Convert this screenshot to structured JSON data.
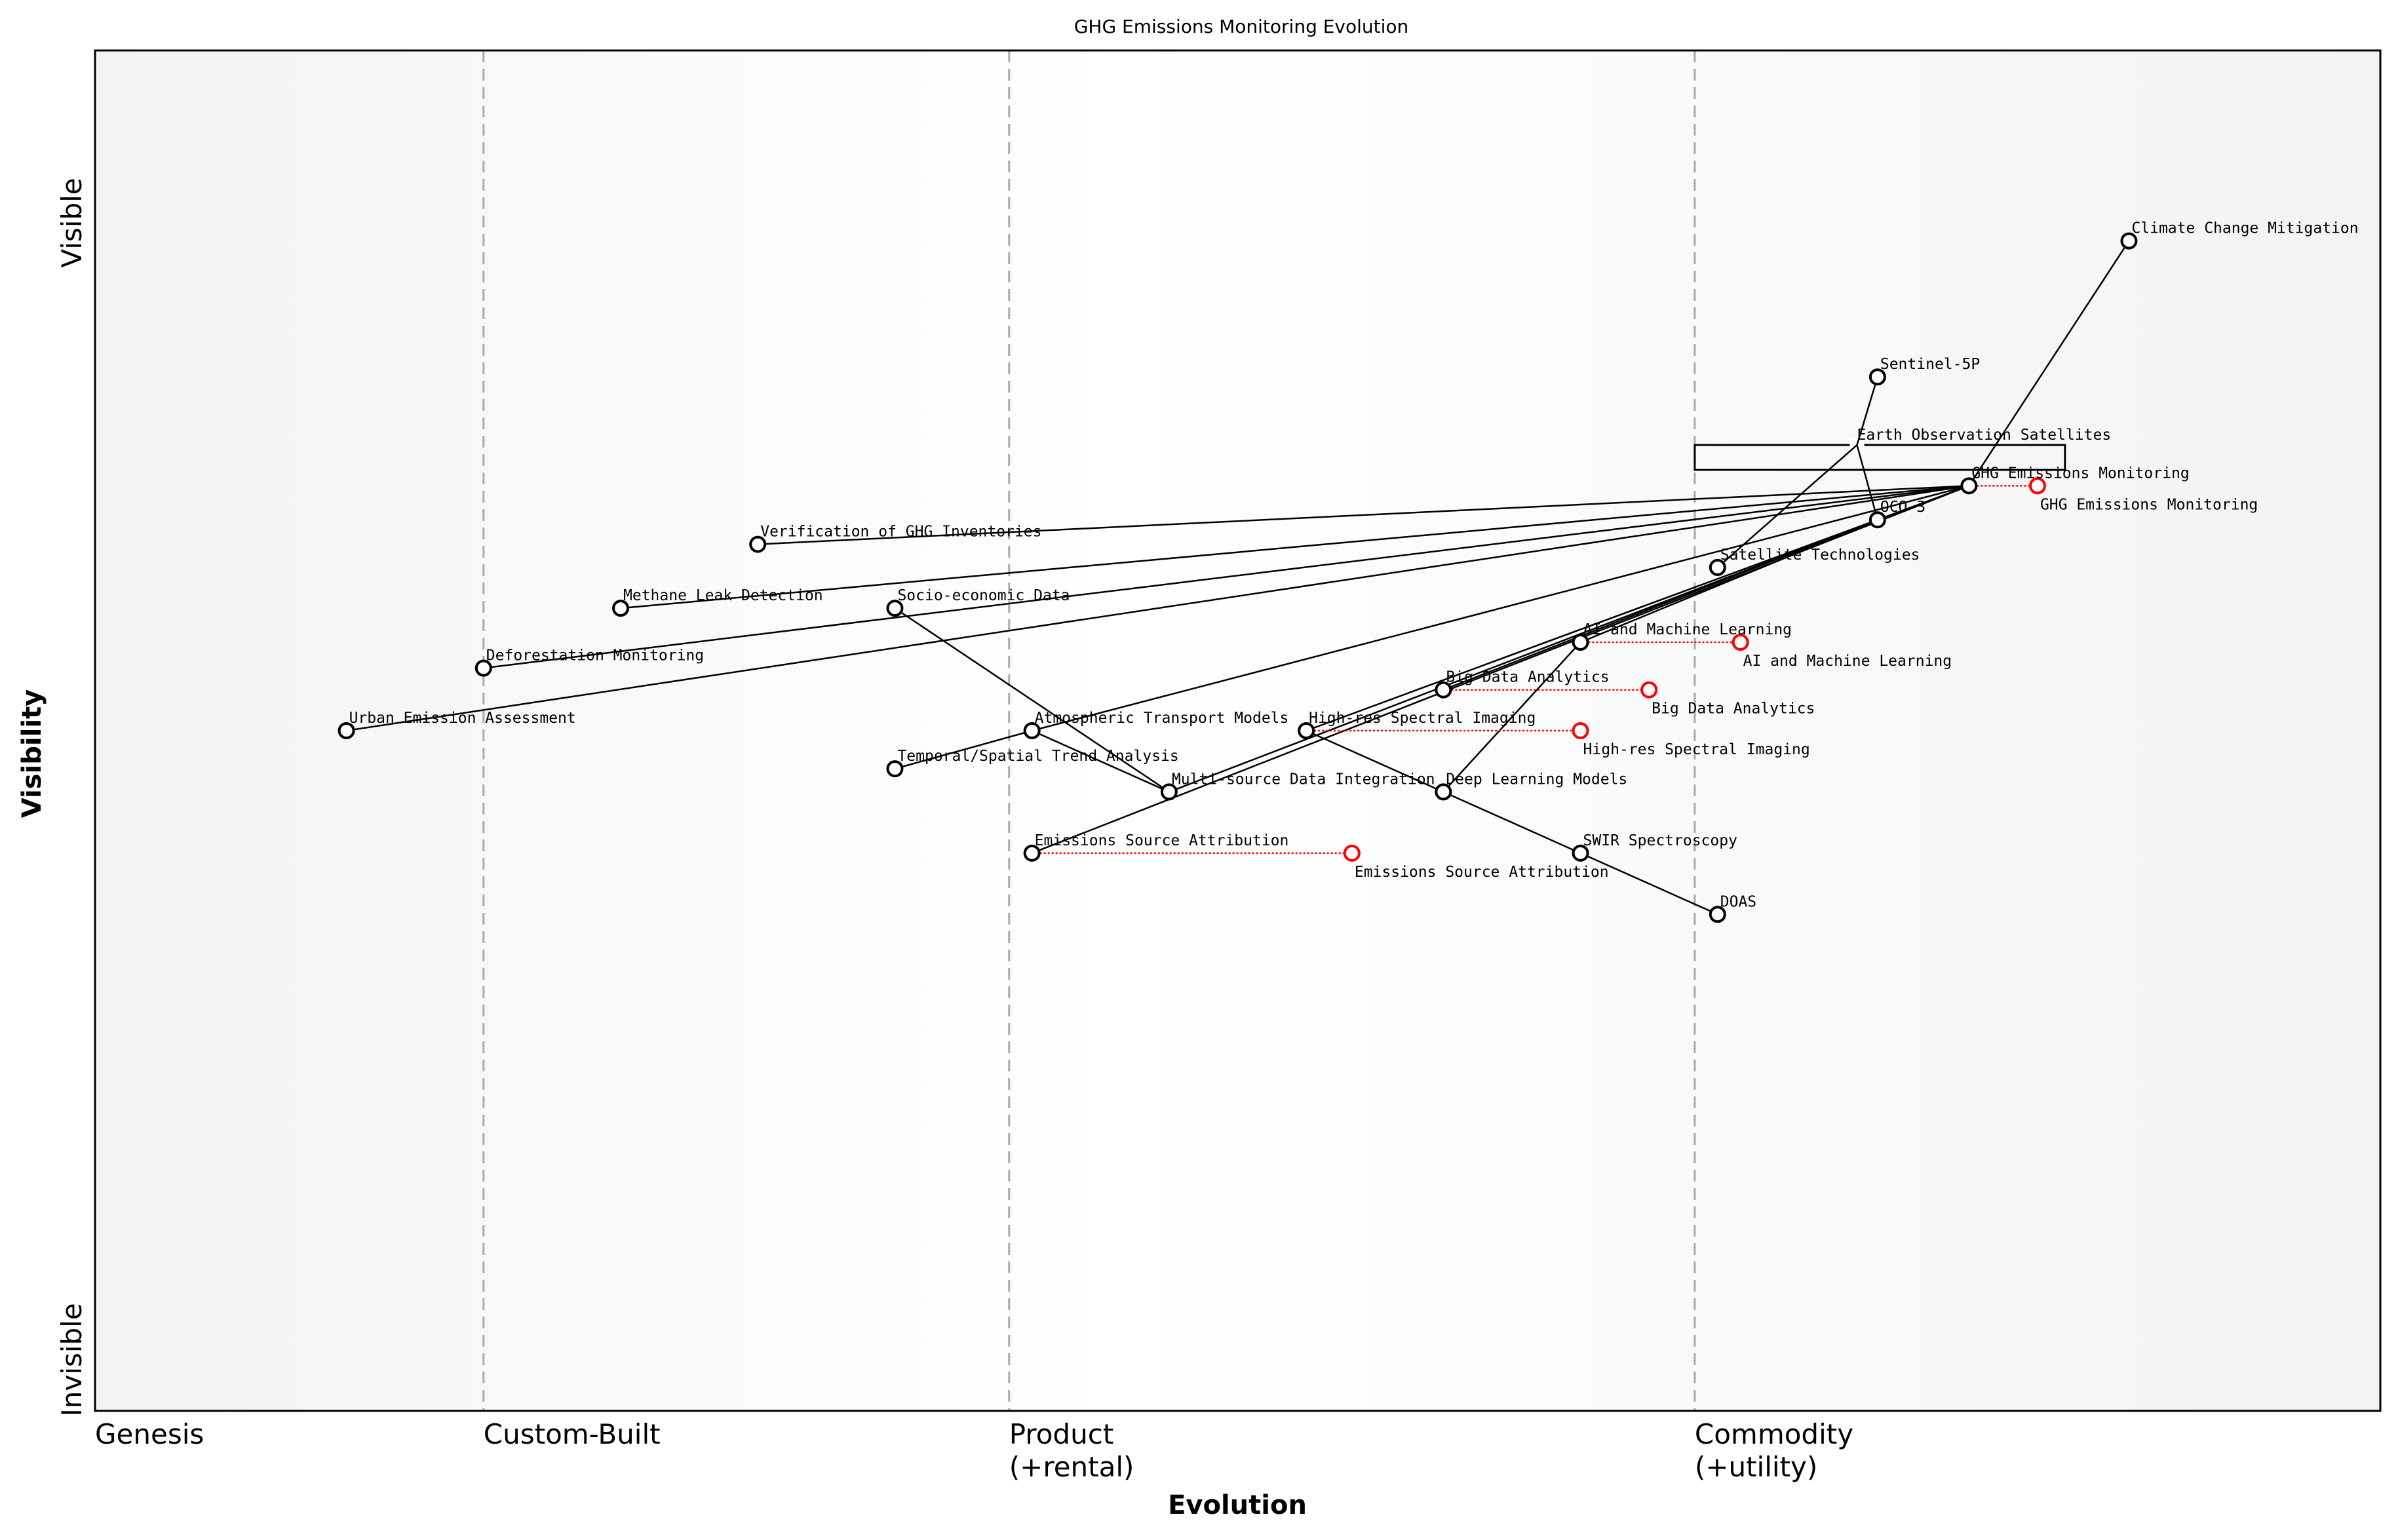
{
  "title": "GHG Emissions Monitoring Evolution",
  "x_axis": {
    "label": "Evolution",
    "stages": [
      {
        "label": "Genesis",
        "at": 0
      },
      {
        "label": "Custom-Built",
        "at": 0.17
      },
      {
        "label": "Product",
        "sub": "(+rental)",
        "at": 0.4
      },
      {
        "label": "Commodity",
        "sub": "(+utility)",
        "at": 0.7
      }
    ]
  },
  "y_axis": {
    "label": "Visibility",
    "top": "Visible",
    "bottom": "Invisible"
  },
  "colors": {
    "node": "#000000",
    "evolve": "#ff0000",
    "stage_line": "#aaaaaa"
  },
  "components": [
    {
      "name": "Climate Change Mitigation",
      "evolution": 0.89,
      "visibility": 0.86
    },
    {
      "name": "Sentinel-5P",
      "evolution": 0.78,
      "visibility": 0.76
    },
    {
      "name": "GHG Emissions Monitoring",
      "evolution": 0.82,
      "visibility": 0.68
    },
    {
      "name": "OCO-3",
      "evolution": 0.78,
      "visibility": 0.655
    },
    {
      "name": "Satellite Technologies",
      "evolution": 0.71,
      "visibility": 0.62
    },
    {
      "name": "AI and Machine Learning",
      "evolution": 0.65,
      "visibility": 0.565
    },
    {
      "name": "Big Data Analytics",
      "evolution": 0.59,
      "visibility": 0.53
    },
    {
      "name": "High-res Spectral Imaging",
      "evolution": 0.53,
      "visibility": 0.5
    },
    {
      "name": "Deep Learning Models",
      "evolution": 0.59,
      "visibility": 0.455
    },
    {
      "name": "SWIR Spectroscopy",
      "evolution": 0.65,
      "visibility": 0.41
    },
    {
      "name": "DOAS",
      "evolution": 0.71,
      "visibility": 0.365
    },
    {
      "name": "Emissions Source Attribution",
      "evolution": 0.41,
      "visibility": 0.41
    },
    {
      "name": "Multi-source Data Integration",
      "evolution": 0.47,
      "visibility": 0.455
    },
    {
      "name": "Atmospheric Transport Models",
      "evolution": 0.41,
      "visibility": 0.5
    },
    {
      "name": "Temporal/Spatial Trend Analysis",
      "evolution": 0.35,
      "visibility": 0.472
    },
    {
      "name": "Socio-economic Data",
      "evolution": 0.35,
      "visibility": 0.59
    },
    {
      "name": "Verification of GHG Inventories",
      "evolution": 0.29,
      "visibility": 0.637
    },
    {
      "name": "Methane Leak Detection",
      "evolution": 0.23,
      "visibility": 0.59
    },
    {
      "name": "Deforestation Monitoring",
      "evolution": 0.17,
      "visibility": 0.546
    },
    {
      "name": "Urban Emission Assessment",
      "evolution": 0.11,
      "visibility": 0.5
    }
  ],
  "pipelines": [
    {
      "name": "Earth Observation Satellites",
      "evolution": 0.771,
      "visibility": 0.71,
      "start": 0.7,
      "end": 0.862
    }
  ],
  "evolves": [
    {
      "name": "GHG Emissions Monitoring",
      "to": 0.85
    },
    {
      "name": "AI and Machine Learning",
      "to": 0.72
    },
    {
      "name": "Big Data Analytics",
      "to": 0.68
    },
    {
      "name": "High-res Spectral Imaging",
      "to": 0.65
    },
    {
      "name": "Emissions Source Attribution",
      "to": 0.55
    }
  ],
  "links": [
    [
      "Climate Change Mitigation",
      "GHG Emissions Monitoring"
    ],
    [
      "GHG Emissions Monitoring",
      "Verification of GHG Inventories"
    ],
    [
      "GHG Emissions Monitoring",
      "Methane Leak Detection"
    ],
    [
      "GHG Emissions Monitoring",
      "Deforestation Monitoring"
    ],
    [
      "GHG Emissions Monitoring",
      "Urban Emission Assessment"
    ],
    [
      "GHG Emissions Monitoring",
      "Atmospheric Transport Models"
    ],
    [
      "GHG Emissions Monitoring",
      "Emissions Source Attribution"
    ],
    [
      "GHG Emissions Monitoring",
      "OCO-3"
    ],
    [
      "OCO-3",
      "AI and Machine Learning"
    ],
    [
      "OCO-3",
      "Big Data Analytics"
    ],
    [
      "OCO-3",
      "High-res Spectral Imaging"
    ],
    [
      "OCO-3",
      "Multi-source Data Integration"
    ],
    [
      "Earth Observation Satellites",
      "Sentinel-5P"
    ],
    [
      "Earth Observation Satellites",
      "OCO-3"
    ],
    [
      "Earth Observation Satellites",
      "Satellite Technologies"
    ],
    [
      "Temporal/Spatial Trend Analysis",
      "Atmospheric Transport Models"
    ],
    [
      "Atmospheric Transport Models",
      "Multi-source Data Integration"
    ],
    [
      "Socio-economic Data",
      "Multi-source Data Integration"
    ],
    [
      "High-res Spectral Imaging",
      "Deep Learning Models"
    ],
    [
      "Deep Learning Models",
      "SWIR Spectroscopy"
    ],
    [
      "SWIR Spectroscopy",
      "DOAS"
    ],
    [
      "Deep Learning Models",
      "AI and Machine Learning"
    ]
  ]
}
